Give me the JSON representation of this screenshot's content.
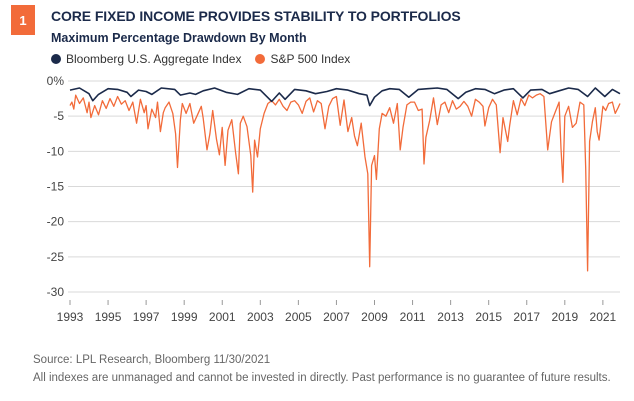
{
  "header": {
    "badge": "1",
    "title": "CORE FIXED INCOME PROVIDES STABILITY TO PORTFOLIOS",
    "subtitle": "Maximum Percentage Drawdown By Month"
  },
  "footer": {
    "source": "Source: LPL Research, Bloomberg 11/30/2021",
    "disclaimer": "All indexes are unmanaged and cannot be invested in directly. Past performance is no guarantee of future results."
  },
  "chart_data": {
    "type": "line",
    "title": "CORE FIXED INCOME PROVIDES STABILITY TO PORTFOLIOS",
    "subtitle": "Maximum Percentage Drawdown By Month",
    "xlabel": "",
    "ylabel": "",
    "xlim": [
      1993,
      2021.9
    ],
    "ylim": [
      -30,
      0
    ],
    "x_ticks": [
      "1993",
      "1995",
      "1997",
      "1999",
      "2001",
      "2003",
      "2005",
      "2007",
      "2009",
      "2011",
      "2013",
      "2015",
      "2017",
      "2019",
      "2021"
    ],
    "y_ticks": [
      "0%",
      "-5",
      "-10",
      "-15",
      "-20",
      "-25",
      "-30"
    ],
    "y_tick_values": [
      0,
      -5,
      -10,
      -15,
      -20,
      -25,
      -30
    ],
    "grid": "horizontal",
    "legend_position": "top-left",
    "series": [
      {
        "name": "Bloomberg U.S. Aggregate Index",
        "color": "#1b2a4a",
        "points": [
          [
            1993.0,
            -1.3
          ],
          [
            1993.5,
            -1.0
          ],
          [
            1994.0,
            -1.8
          ],
          [
            1994.2,
            -2.8
          ],
          [
            1994.5,
            -1.9
          ],
          [
            1995.0,
            -1.1
          ],
          [
            1995.5,
            -1.2
          ],
          [
            1996.0,
            -1.6
          ],
          [
            1996.2,
            -2.2
          ],
          [
            1996.6,
            -1.3
          ],
          [
            1997.0,
            -1.5
          ],
          [
            1997.3,
            -1.9
          ],
          [
            1997.8,
            -1.0
          ],
          [
            1998.5,
            -1.2
          ],
          [
            1998.8,
            -2.0
          ],
          [
            1999.3,
            -1.7
          ],
          [
            1999.6,
            -1.9
          ],
          [
            2000.0,
            -1.4
          ],
          [
            2000.6,
            -1.0
          ],
          [
            2001.2,
            -1.6
          ],
          [
            2001.8,
            -1.9
          ],
          [
            2002.4,
            -1.1
          ],
          [
            2003.0,
            -1.3
          ],
          [
            2003.6,
            -2.9
          ],
          [
            2004.0,
            -1.7
          ],
          [
            2004.3,
            -2.6
          ],
          [
            2004.8,
            -1.2
          ],
          [
            2005.4,
            -1.4
          ],
          [
            2005.9,
            -1.8
          ],
          [
            2006.5,
            -1.5
          ],
          [
            2007.0,
            -1.1
          ],
          [
            2007.6,
            -1.3
          ],
          [
            2008.2,
            -1.8
          ],
          [
            2008.6,
            -2.0
          ],
          [
            2008.75,
            -3.5
          ],
          [
            2009.0,
            -2.3
          ],
          [
            2009.4,
            -1.4
          ],
          [
            2009.8,
            -1.1
          ],
          [
            2010.3,
            -1.2
          ],
          [
            2010.8,
            -2.3
          ],
          [
            2011.3,
            -1.2
          ],
          [
            2011.8,
            -1.1
          ],
          [
            2012.3,
            -1.0
          ],
          [
            2012.8,
            -1.2
          ],
          [
            2013.4,
            -2.5
          ],
          [
            2013.8,
            -1.6
          ],
          [
            2014.3,
            -1.1
          ],
          [
            2014.8,
            -1.2
          ],
          [
            2015.3,
            -1.8
          ],
          [
            2015.8,
            -1.3
          ],
          [
            2016.3,
            -1.1
          ],
          [
            2016.8,
            -2.4
          ],
          [
            2017.2,
            -1.3
          ],
          [
            2017.8,
            -1.2
          ],
          [
            2018.2,
            -1.8
          ],
          [
            2018.7,
            -1.4
          ],
          [
            2019.2,
            -1.0
          ],
          [
            2019.7,
            -1.2
          ],
          [
            2020.2,
            -2.2
          ],
          [
            2020.6,
            -1.0
          ],
          [
            2021.1,
            -2.2
          ],
          [
            2021.5,
            -1.2
          ],
          [
            2021.9,
            -1.8
          ]
        ]
      },
      {
        "name": "S&P 500 Index",
        "color": "#f26b3a",
        "points": [
          [
            1993.0,
            -3.5
          ],
          [
            1993.1,
            -3.0
          ],
          [
            1993.2,
            -4.0
          ],
          [
            1993.3,
            -2.0
          ],
          [
            1993.5,
            -3.2
          ],
          [
            1993.7,
            -2.4
          ],
          [
            1993.9,
            -4.5
          ],
          [
            1994.0,
            -3.0
          ],
          [
            1994.1,
            -5.2
          ],
          [
            1994.3,
            -3.5
          ],
          [
            1994.5,
            -4.8
          ],
          [
            1994.7,
            -2.8
          ],
          [
            1994.9,
            -3.9
          ],
          [
            1995.1,
            -2.5
          ],
          [
            1995.3,
            -3.6
          ],
          [
            1995.5,
            -2.2
          ],
          [
            1995.7,
            -3.3
          ],
          [
            1995.9,
            -2.8
          ],
          [
            1996.1,
            -4.2
          ],
          [
            1996.3,
            -3.0
          ],
          [
            1996.5,
            -6.0
          ],
          [
            1996.7,
            -2.6
          ],
          [
            1996.9,
            -4.5
          ],
          [
            1997.0,
            -3.5
          ],
          [
            1997.1,
            -6.8
          ],
          [
            1997.3,
            -4.0
          ],
          [
            1997.5,
            -5.2
          ],
          [
            1997.6,
            -3.0
          ],
          [
            1997.75,
            -7.2
          ],
          [
            1997.9,
            -4.5
          ],
          [
            1998.0,
            -3.8
          ],
          [
            1998.2,
            -3.0
          ],
          [
            1998.4,
            -4.6
          ],
          [
            1998.55,
            -7.5
          ],
          [
            1998.65,
            -12.3
          ],
          [
            1998.8,
            -5.5
          ],
          [
            1998.9,
            -3.2
          ],
          [
            1999.1,
            -4.6
          ],
          [
            1999.3,
            -3.2
          ],
          [
            1999.5,
            -6.0
          ],
          [
            1999.7,
            -4.8
          ],
          [
            1999.9,
            -3.6
          ],
          [
            2000.0,
            -5.3
          ],
          [
            2000.2,
            -9.8
          ],
          [
            2000.35,
            -7.5
          ],
          [
            2000.5,
            -4.2
          ],
          [
            2000.7,
            -8.3
          ],
          [
            2000.85,
            -10.5
          ],
          [
            2001.0,
            -6.6
          ],
          [
            2001.15,
            -12.0
          ],
          [
            2001.3,
            -7.0
          ],
          [
            2001.5,
            -5.5
          ],
          [
            2001.7,
            -10.2
          ],
          [
            2001.85,
            -13.2
          ],
          [
            2001.95,
            -6.0
          ],
          [
            2002.1,
            -5.0
          ],
          [
            2002.3,
            -6.5
          ],
          [
            2002.5,
            -10.6
          ],
          [
            2002.6,
            -15.8
          ],
          [
            2002.7,
            -8.4
          ],
          [
            2002.85,
            -10.8
          ],
          [
            2003.0,
            -6.8
          ],
          [
            2003.2,
            -4.6
          ],
          [
            2003.4,
            -3.2
          ],
          [
            2003.6,
            -2.8
          ],
          [
            2003.8,
            -3.4
          ],
          [
            2004.0,
            -2.6
          ],
          [
            2004.2,
            -3.6
          ],
          [
            2004.4,
            -4.2
          ],
          [
            2004.6,
            -3.0
          ],
          [
            2004.8,
            -2.8
          ],
          [
            2005.0,
            -3.4
          ],
          [
            2005.2,
            -4.6
          ],
          [
            2005.4,
            -2.9
          ],
          [
            2005.6,
            -2.4
          ],
          [
            2005.8,
            -4.4
          ],
          [
            2006.0,
            -2.8
          ],
          [
            2006.2,
            -3.2
          ],
          [
            2006.4,
            -6.8
          ],
          [
            2006.6,
            -3.6
          ],
          [
            2006.8,
            -2.5
          ],
          [
            2007.0,
            -2.2
          ],
          [
            2007.2,
            -6.3
          ],
          [
            2007.4,
            -2.7
          ],
          [
            2007.6,
            -7.2
          ],
          [
            2007.8,
            -5.2
          ],
          [
            2007.95,
            -7.8
          ],
          [
            2008.1,
            -9.2
          ],
          [
            2008.3,
            -6.0
          ],
          [
            2008.5,
            -10.8
          ],
          [
            2008.65,
            -13.2
          ],
          [
            2008.75,
            -26.4
          ],
          [
            2008.85,
            -12.0
          ],
          [
            2009.0,
            -10.6
          ],
          [
            2009.1,
            -14.0
          ],
          [
            2009.25,
            -6.8
          ],
          [
            2009.4,
            -4.6
          ],
          [
            2009.6,
            -5.0
          ],
          [
            2009.8,
            -3.8
          ],
          [
            2010.0,
            -6.0
          ],
          [
            2010.2,
            -3.2
          ],
          [
            2010.35,
            -9.8
          ],
          [
            2010.5,
            -6.6
          ],
          [
            2010.7,
            -3.4
          ],
          [
            2010.9,
            -3.0
          ],
          [
            2011.1,
            -3.0
          ],
          [
            2011.3,
            -4.2
          ],
          [
            2011.5,
            -4.0
          ],
          [
            2011.6,
            -11.8
          ],
          [
            2011.7,
            -8.0
          ],
          [
            2011.9,
            -5.6
          ],
          [
            2012.1,
            -2.4
          ],
          [
            2012.3,
            -6.2
          ],
          [
            2012.5,
            -3.4
          ],
          [
            2012.7,
            -3.0
          ],
          [
            2012.9,
            -4.5
          ],
          [
            2013.1,
            -2.8
          ],
          [
            2013.3,
            -4.0
          ],
          [
            2013.5,
            -3.6
          ],
          [
            2013.7,
            -2.9
          ],
          [
            2013.9,
            -3.6
          ],
          [
            2014.1,
            -5.0
          ],
          [
            2014.3,
            -2.6
          ],
          [
            2014.5,
            -3.0
          ],
          [
            2014.7,
            -3.6
          ],
          [
            2014.8,
            -6.4
          ],
          [
            2015.0,
            -3.8
          ],
          [
            2015.2,
            -2.6
          ],
          [
            2015.4,
            -3.4
          ],
          [
            2015.6,
            -10.2
          ],
          [
            2015.75,
            -5.2
          ],
          [
            2016.0,
            -8.6
          ],
          [
            2016.1,
            -6.4
          ],
          [
            2016.3,
            -2.8
          ],
          [
            2016.5,
            -4.8
          ],
          [
            2016.7,
            -2.5
          ],
          [
            2016.9,
            -3.5
          ],
          [
            2017.1,
            -2.0
          ],
          [
            2017.3,
            -2.4
          ],
          [
            2017.5,
            -2.0
          ],
          [
            2017.7,
            -1.8
          ],
          [
            2017.9,
            -2.2
          ],
          [
            2018.1,
            -9.8
          ],
          [
            2018.3,
            -5.8
          ],
          [
            2018.5,
            -4.4
          ],
          [
            2018.7,
            -3.0
          ],
          [
            2018.8,
            -9.6
          ],
          [
            2018.9,
            -14.4
          ],
          [
            2019.0,
            -5.0
          ],
          [
            2019.2,
            -3.6
          ],
          [
            2019.4,
            -6.6
          ],
          [
            2019.6,
            -6.0
          ],
          [
            2019.8,
            -3.0
          ],
          [
            2020.0,
            -3.4
          ],
          [
            2020.1,
            -12.4
          ],
          [
            2020.2,
            -27.0
          ],
          [
            2020.3,
            -8.6
          ],
          [
            2020.45,
            -5.8
          ],
          [
            2020.6,
            -3.8
          ],
          [
            2020.7,
            -7.2
          ],
          [
            2020.8,
            -8.4
          ],
          [
            2021.0,
            -3.6
          ],
          [
            2021.15,
            -4.2
          ],
          [
            2021.3,
            -3.2
          ],
          [
            2021.5,
            -3.0
          ],
          [
            2021.65,
            -4.6
          ],
          [
            2021.8,
            -3.8
          ],
          [
            2021.9,
            -3.2
          ]
        ]
      }
    ]
  }
}
